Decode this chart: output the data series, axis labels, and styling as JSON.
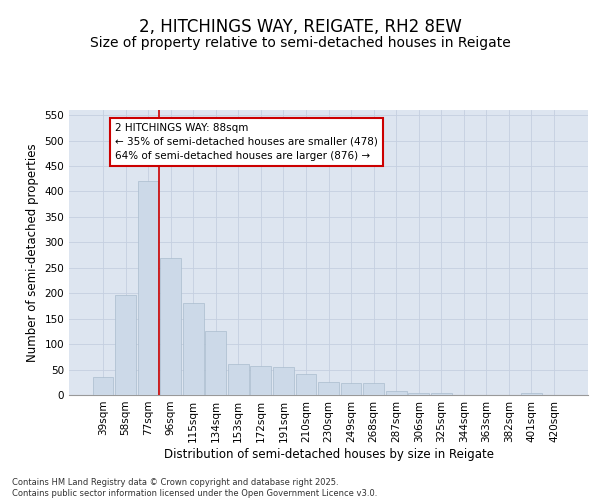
{
  "title": "2, HITCHINGS WAY, REIGATE, RH2 8EW",
  "subtitle": "Size of property relative to semi-detached houses in Reigate",
  "xlabel": "Distribution of semi-detached houses by size in Reigate",
  "ylabel": "Number of semi-detached properties",
  "categories": [
    "39sqm",
    "58sqm",
    "77sqm",
    "96sqm",
    "115sqm",
    "134sqm",
    "153sqm",
    "172sqm",
    "191sqm",
    "210sqm",
    "230sqm",
    "249sqm",
    "268sqm",
    "287sqm",
    "306sqm",
    "325sqm",
    "344sqm",
    "363sqm",
    "382sqm",
    "401sqm",
    "420sqm"
  ],
  "values": [
    35,
    197,
    420,
    270,
    181,
    125,
    60,
    57,
    55,
    42,
    25,
    23,
    23,
    7,
    4,
    4,
    0,
    0,
    0,
    3,
    0
  ],
  "bar_color": "#ccd9e8",
  "bar_edge_color": "#aabcce",
  "grid_color": "#c5cfe0",
  "background_color": "#dde5f0",
  "red_line_color": "#cc0000",
  "annotation_text": "2 HITCHINGS WAY: 88sqm\n← 35% of semi-detached houses are smaller (478)\n64% of semi-detached houses are larger (876) →",
  "annotation_box_color": "#ffffff",
  "annotation_box_edge_color": "#cc0000",
  "ylim": [
    0,
    560
  ],
  "yticks": [
    0,
    50,
    100,
    150,
    200,
    250,
    300,
    350,
    400,
    450,
    500,
    550
  ],
  "footer_text": "Contains HM Land Registry data © Crown copyright and database right 2025.\nContains public sector information licensed under the Open Government Licence v3.0.",
  "title_fontsize": 12,
  "subtitle_fontsize": 10,
  "tick_fontsize": 7.5,
  "label_fontsize": 8.5
}
